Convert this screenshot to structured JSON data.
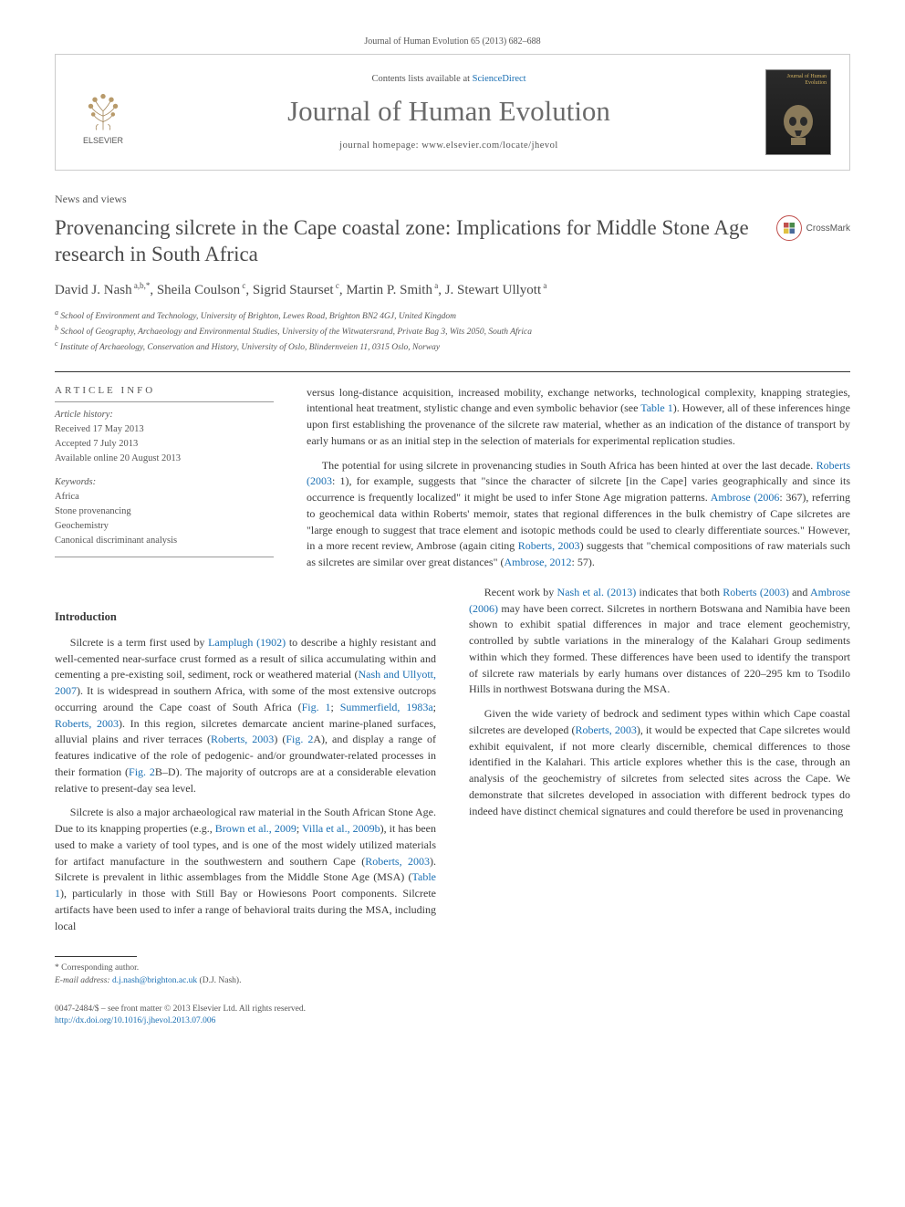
{
  "citation": "Journal of Human Evolution 65 (2013) 682–688",
  "header": {
    "contents_prefix": "Contents lists available at ",
    "contents_link": "ScienceDirect",
    "journal_name": "Journal of Human Evolution",
    "homepage_prefix": "journal homepage: ",
    "homepage_url": "www.elsevier.com/locate/jhevol",
    "elsevier_label": "ELSEVIER",
    "cover_title": "Journal of Human Evolution"
  },
  "section_label": "News and views",
  "title": "Provenancing silcrete in the Cape coastal zone: Implications for Middle Stone Age research in South Africa",
  "crossmark_label": "CrossMark",
  "authors_html": "David J. Nash<sup> a,b,*</sup>, Sheila Coulson<sup> c</sup>, Sigrid Staurset<sup> c</sup>, Martin P. Smith<sup> a</sup>, J. Stewart Ullyott<sup> a</sup>",
  "affiliations": [
    {
      "sup": "a",
      "text": "School of Environment and Technology, University of Brighton, Lewes Road, Brighton BN2 4GJ, United Kingdom"
    },
    {
      "sup": "b",
      "text": "School of Geography, Archaeology and Environmental Studies, University of the Witwatersrand, Private Bag 3, Wits 2050, South Africa"
    },
    {
      "sup": "c",
      "text": "Institute of Archaeology, Conservation and History, University of Oslo, Blindernveien 11, 0315 Oslo, Norway"
    }
  ],
  "article_info_heading": "ARTICLE INFO",
  "history": {
    "label": "Article history:",
    "received": "Received 17 May 2013",
    "accepted": "Accepted 7 July 2013",
    "online": "Available online 20 August 2013"
  },
  "keywords": {
    "label": "Keywords:",
    "items": [
      "Africa",
      "Stone provenancing",
      "Geochemistry",
      "Canonical discriminant analysis"
    ]
  },
  "intro_heading": "Introduction",
  "left_paragraphs": [
    "Silcrete is a term first used by <a href='#'>Lamplugh (1902)</a> to describe a highly resistant and well-cemented near-surface crust formed as a result of silica accumulating within and cementing a pre-existing soil, sediment, rock or weathered material (<a href='#'>Nash and Ullyott, 2007</a>). It is widespread in southern Africa, with some of the most extensive outcrops occurring around the Cape coast of South Africa (<a href='#'>Fig. 1</a>; <a href='#'>Summerfield, 1983a</a>; <a href='#'>Roberts, 2003</a>). In this region, silcretes demarcate ancient marine-planed surfaces, alluvial plains and river terraces (<a href='#'>Roberts, 2003</a>) (<a href='#'>Fig. 2</a>A), and display a range of features indicative of the role of pedogenic- and/or groundwater-related processes in their formation (<a href='#'>Fig. 2</a>B–D). The majority of outcrops are at a considerable elevation relative to present-day sea level.",
    "Silcrete is also a major archaeological raw material in the South African Stone Age. Due to its knapping properties (e.g., <a href='#'>Brown et al., 2009</a>; <a href='#'>Villa et al., 2009b</a>), it has been used to make a variety of tool types, and is one of the most widely utilized materials for artifact manufacture in the southwestern and southern Cape (<a href='#'>Roberts, 2003</a>). Silcrete is prevalent in lithic assemblages from the Middle Stone Age (MSA) (<a href='#'>Table 1</a>), particularly in those with Still Bay or Howiesons Poort components. Silcrete artifacts have been used to infer a range of behavioral traits during the MSA, including local"
  ],
  "right_paragraphs": [
    "versus long-distance acquisition, increased mobility, exchange networks, technological complexity, knapping strategies, intentional heat treatment, stylistic change and even symbolic behavior (see <a href='#'>Table 1</a>). However, all of these inferences hinge upon first establishing the provenance of the silcrete raw material, whether as an indication of the distance of transport by early humans or as an initial step in the selection of materials for experimental replication studies.",
    "The potential for using silcrete in provenancing studies in South Africa has been hinted at over the last decade. <a href='#'>Roberts (2003</a>: 1), for example, suggests that \"since the character of silcrete [in the Cape] varies geographically and since its occurrence is frequently localized\" it might be used to infer Stone Age migration patterns. <a href='#'>Ambrose (2006</a>: 367), referring to geochemical data within Roberts' memoir, states that regional differences in the bulk chemistry of Cape silcretes are \"large enough to suggest that trace element and isotopic methods could be used to clearly differentiate sources.\" However, in a more recent review, Ambrose (again citing <a href='#'>Roberts, 2003</a>) suggests that \"chemical compositions of raw materials such as silcretes are similar over great distances\" (<a href='#'>Ambrose, 2012</a>: 57).",
    "Recent work by <a href='#'>Nash et al. (2013)</a> indicates that both <a href='#'>Roberts (2003)</a> and <a href='#'>Ambrose (2006)</a> may have been correct. Silcretes in northern Botswana and Namibia have been shown to exhibit spatial differences in major and trace element geochemistry, controlled by subtle variations in the mineralogy of the Kalahari Group sediments within which they formed. These differences have been used to identify the transport of silcrete raw materials by early humans over distances of 220–295 km to Tsodilo Hills in northwest Botswana during the MSA.",
    "Given the wide variety of bedrock and sediment types within which Cape coastal silcretes are developed (<a href='#'>Roberts, 2003</a>), it would be expected that Cape silcretes would exhibit equivalent, if not more clearly discernible, chemical differences to those identified in the Kalahari. This article explores whether this is the case, through an analysis of the geochemistry of silcretes from selected sites across the Cape. We demonstrate that silcretes developed in association with different bedrock types do indeed have distinct chemical signatures and could therefore be used in provenancing"
  ],
  "footnote": {
    "corr_label": "* Corresponding author.",
    "email_label": "E-mail address: ",
    "email": "d.j.nash@brighton.ac.uk",
    "email_suffix": " (D.J. Nash)."
  },
  "bottom": {
    "issn_line": "0047-2484/$ – see front matter © 2013 Elsevier Ltd. All rights reserved.",
    "doi": "http://dx.doi.org/10.1016/j.jhevol.2013.07.006"
  },
  "colors": {
    "link": "#1a6fb3",
    "text": "#3a3a3a",
    "muted": "#555555",
    "elsevier_orange": "#ec6e24",
    "crossmark_red": "#c0504d"
  }
}
